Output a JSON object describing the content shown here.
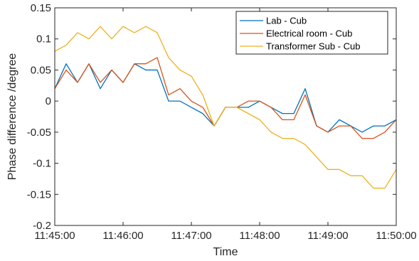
{
  "chart_data": {
    "type": "line",
    "title": "",
    "xlabel": "Time",
    "ylabel": "Phase difference /degree",
    "xlim": [
      "11:45:00",
      "11:50:00"
    ],
    "ylim": [
      -0.2,
      0.15
    ],
    "x_ticks": [
      "11:45:00",
      "11:46:00",
      "11:47:00",
      "11:48:00",
      "11:49:00",
      "11:50:00"
    ],
    "y_ticks": [
      "-0.2",
      "-0.15",
      "-0.1",
      "-0.05",
      "0",
      "0.05",
      "0.1",
      "0.15"
    ],
    "grid": false,
    "legend_position": "top-right",
    "x": [
      "11:45:00",
      "11:45:10",
      "11:45:20",
      "11:45:30",
      "11:45:40",
      "11:45:50",
      "11:46:00",
      "11:46:10",
      "11:46:20",
      "11:46:30",
      "11:46:40",
      "11:46:50",
      "11:47:00",
      "11:47:10",
      "11:47:20",
      "11:47:30",
      "11:47:40",
      "11:47:50",
      "11:48:00",
      "11:48:10",
      "11:48:20",
      "11:48:30",
      "11:48:40",
      "11:48:50",
      "11:49:00",
      "11:49:10",
      "11:49:20",
      "11:49:30",
      "11:49:40",
      "11:49:50",
      "11:50:00"
    ],
    "series": [
      {
        "name": "Lab - Cub",
        "color": "#0072BD",
        "values": [
          0.02,
          0.06,
          0.03,
          0.06,
          0.02,
          0.05,
          0.03,
          0.06,
          0.05,
          0.05,
          0.0,
          0.0,
          -0.01,
          -0.02,
          -0.04,
          -0.01,
          -0.01,
          -0.01,
          0.0,
          -0.01,
          -0.02,
          -0.02,
          0.02,
          -0.04,
          -0.05,
          -0.03,
          -0.04,
          -0.05,
          -0.04,
          -0.04,
          -0.03
        ]
      },
      {
        "name": "Electrical room - Cub",
        "color": "#D95319",
        "values": [
          0.02,
          0.05,
          0.03,
          0.06,
          0.03,
          0.05,
          0.03,
          0.06,
          0.06,
          0.07,
          0.01,
          0.02,
          0.0,
          -0.01,
          -0.04,
          -0.01,
          -0.01,
          0.0,
          0.0,
          -0.01,
          -0.03,
          -0.03,
          0.01,
          -0.04,
          -0.05,
          -0.04,
          -0.04,
          -0.06,
          -0.06,
          -0.05,
          -0.03
        ]
      },
      {
        "name": "Transformer Sub - Cub",
        "color": "#EDB120",
        "values": [
          0.08,
          0.09,
          0.11,
          0.1,
          0.12,
          0.1,
          0.12,
          0.11,
          0.12,
          0.11,
          0.07,
          0.05,
          0.04,
          0.01,
          -0.04,
          -0.01,
          -0.01,
          -0.02,
          -0.03,
          -0.05,
          -0.06,
          -0.06,
          -0.07,
          -0.09,
          -0.11,
          -0.11,
          -0.12,
          -0.12,
          -0.14,
          -0.14,
          -0.11
        ]
      }
    ]
  }
}
